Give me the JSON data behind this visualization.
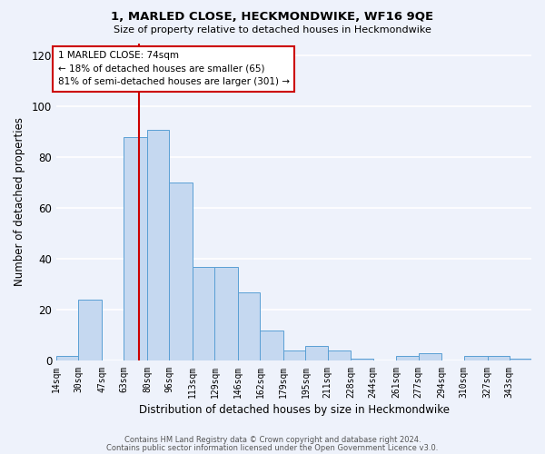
{
  "title": "1, MARLED CLOSE, HECKMONDWIKE, WF16 9QE",
  "subtitle": "Size of property relative to detached houses in Heckmondwike",
  "xlabel": "Distribution of detached houses by size in Heckmondwike",
  "ylabel": "Number of detached properties",
  "categories": [
    "14sqm",
    "30sqm",
    "47sqm",
    "63sqm",
    "80sqm",
    "96sqm",
    "113sqm",
    "129sqm",
    "146sqm",
    "162sqm",
    "179sqm",
    "195sqm",
    "211sqm",
    "228sqm",
    "244sqm",
    "261sqm",
    "277sqm",
    "294sqm",
    "310sqm",
    "327sqm",
    "343sqm"
  ],
  "values": [
    2,
    24,
    0,
    88,
    91,
    70,
    37,
    37,
    27,
    12,
    4,
    6,
    4,
    1,
    0,
    2,
    3,
    0,
    2,
    2,
    1
  ],
  "bar_color": "#c5d8f0",
  "bar_edge_color": "#5a9fd4",
  "background_color": "#eef2fb",
  "grid_color": "#ffffff",
  "vline_x": 74,
  "vline_color": "#cc0000",
  "annotation_title": "1 MARLED CLOSE: 74sqm",
  "annotation_line1": "← 18% of detached houses are smaller (65)",
  "annotation_line2": "81% of semi-detached houses are larger (301) →",
  "annotation_box_color": "#ffffff",
  "annotation_box_edge": "#cc0000",
  "ylim": [
    0,
    125
  ],
  "yticks": [
    0,
    20,
    40,
    60,
    80,
    100,
    120
  ],
  "footer1": "Contains HM Land Registry data © Crown copyright and database right 2024.",
  "footer2": "Contains public sector information licensed under the Open Government Licence v3.0."
}
